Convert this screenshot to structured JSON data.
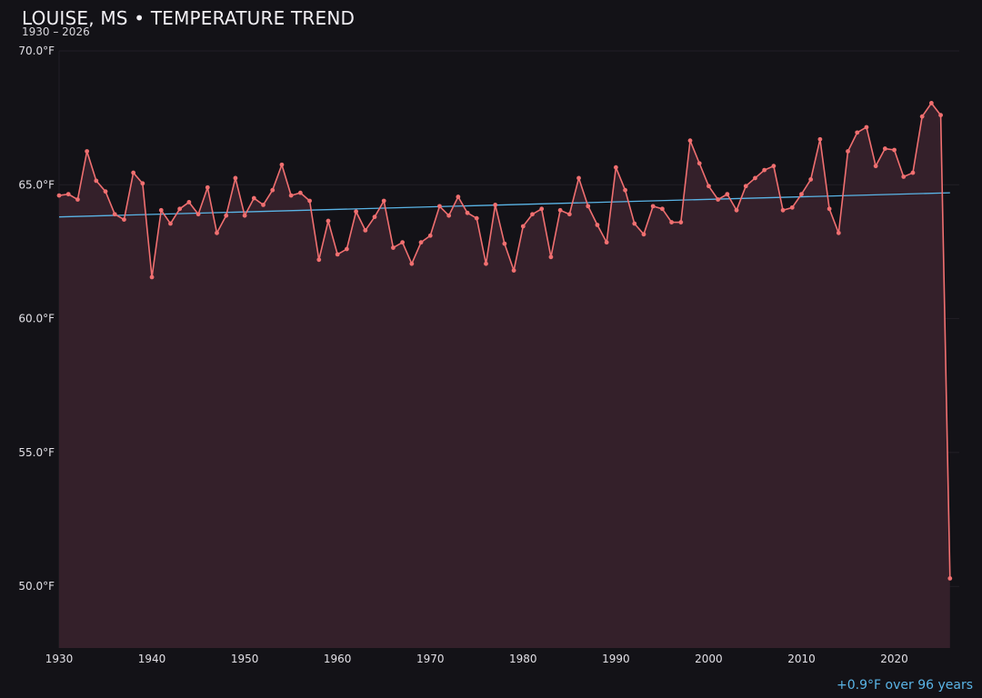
{
  "title": "LOUISE, MS • TEMPERATURE TREND",
  "subtitle": "1930 – 2026",
  "trend_note": "+0.9°F over 96 years",
  "colors": {
    "background": "#131217",
    "line": "#f06f70",
    "fill": "#34202a",
    "trend": "#5ab4e6",
    "grid": "#221f27",
    "text": "#e2e0e6"
  },
  "chart_data": {
    "type": "line",
    "title": "LOUISE, MS • TEMPERATURE TREND",
    "subtitle": "1930 – 2026",
    "xlabel": "",
    "ylabel": "",
    "xlim": [
      1930,
      2027
    ],
    "ylim": [
      47.7,
      70.0
    ],
    "grid": true,
    "y_ticks": [
      50.0,
      55.0,
      60.0,
      65.0,
      70.0
    ],
    "y_tick_labels": [
      "50.0°F",
      "55.0°F",
      "60.0°F",
      "65.0°F",
      "70.0°F"
    ],
    "x_ticks": [
      1930,
      1940,
      1950,
      1960,
      1970,
      1980,
      1990,
      2000,
      2010,
      2020
    ],
    "x_tick_labels": [
      "1930",
      "1940",
      "1950",
      "1960",
      "1970",
      "1980",
      "1990",
      "2000",
      "2010",
      "2020"
    ],
    "x": [
      1930,
      1931,
      1932,
      1933,
      1934,
      1935,
      1936,
      1937,
      1938,
      1939,
      1940,
      1941,
      1942,
      1943,
      1944,
      1945,
      1946,
      1947,
      1948,
      1949,
      1950,
      1951,
      1952,
      1953,
      1954,
      1955,
      1956,
      1957,
      1958,
      1959,
      1960,
      1961,
      1962,
      1963,
      1964,
      1965,
      1966,
      1967,
      1968,
      1969,
      1970,
      1971,
      1972,
      1973,
      1974,
      1975,
      1976,
      1977,
      1978,
      1979,
      1980,
      1981,
      1982,
      1983,
      1984,
      1985,
      1986,
      1987,
      1988,
      1989,
      1990,
      1991,
      1992,
      1993,
      1994,
      1995,
      1996,
      1997,
      1998,
      1999,
      2000,
      2001,
      2002,
      2003,
      2004,
      2005,
      2006,
      2007,
      2008,
      2009,
      2010,
      2011,
      2012,
      2013,
      2014,
      2015,
      2016,
      2017,
      2018,
      2019,
      2020,
      2021,
      2022,
      2023,
      2024,
      2025,
      2026
    ],
    "series": [
      {
        "values": [
          64.6,
          64.65,
          64.45,
          66.25,
          65.15,
          64.75,
          63.9,
          63.7,
          65.45,
          65.05,
          61.55,
          64.05,
          63.55,
          64.1,
          64.35,
          63.9,
          64.9,
          63.2,
          63.85,
          65.25,
          63.85,
          64.5,
          64.25,
          64.8,
          65.75,
          64.6,
          64.7,
          64.4,
          62.2,
          63.65,
          62.4,
          62.6,
          64.0,
          63.3,
          63.8,
          64.4,
          62.65,
          62.85,
          62.05,
          62.85,
          63.1,
          64.2,
          63.85,
          64.55,
          63.95,
          63.75,
          62.05,
          64.25,
          62.8,
          61.8,
          63.45,
          63.9,
          64.1,
          62.3,
          64.05,
          63.9,
          65.25,
          64.2,
          63.5,
          62.85,
          65.65,
          64.8,
          63.55,
          63.15,
          64.2,
          64.1,
          63.6,
          63.6,
          66.65,
          65.8,
          64.95,
          64.45,
          64.65,
          64.05,
          64.95,
          65.25,
          65.55,
          65.7,
          64.05,
          64.15,
          64.65,
          65.2,
          66.7,
          64.1,
          63.2,
          66.25,
          66.95,
          67.15,
          65.7,
          66.35,
          66.3,
          65.3,
          65.45,
          67.55,
          68.05,
          67.6,
          50.3
        ]
      }
    ],
    "trend_line": {
      "x": [
        1930,
        2026
      ],
      "y": [
        63.8,
        64.7
      ]
    }
  }
}
